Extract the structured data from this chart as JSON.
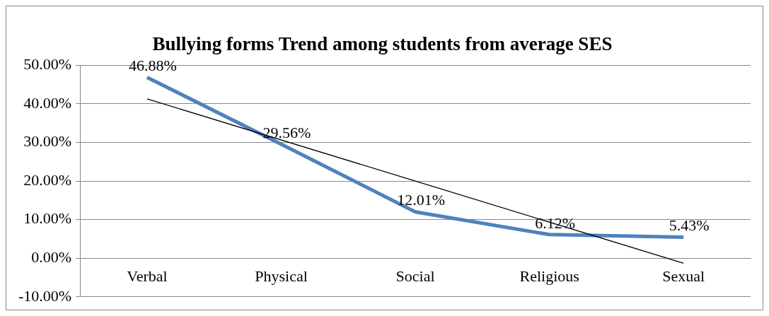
{
  "chart_data": {
    "type": "line",
    "title": "Bullying forms Trend among students from average SES",
    "categories": [
      "Verbal",
      "Physical",
      "Social",
      "Religious",
      "Sexual"
    ],
    "series": [
      {
        "color": "#4f81bd",
        "values": [
          46.88,
          29.56,
          12.01,
          6.12,
          5.43
        ],
        "value_labels": [
          "46.88%",
          "29.56%",
          "12.01%",
          "6.12%",
          "5.43%"
        ]
      },
      {
        "type": "line",
        "color": "#000000",
        "x": [
          "Verbal",
          "Sexual"
        ],
        "values": [
          41.3,
          -1.3
        ]
      }
    ],
    "ylim": [
      -10,
      50
    ],
    "yticks": [
      {
        "value": -10,
        "label": "-10.00%"
      },
      {
        "value": 0,
        "label": "0.00%"
      },
      {
        "value": 10,
        "label": "10.00%"
      },
      {
        "value": 20,
        "label": "20.00%"
      },
      {
        "value": 30,
        "label": "30.00%"
      },
      {
        "value": 40,
        "label": "40.00%"
      },
      {
        "value": 50,
        "label": "50.00%"
      }
    ],
    "grid": "y",
    "marker": "none",
    "line_style": "solid"
  }
}
